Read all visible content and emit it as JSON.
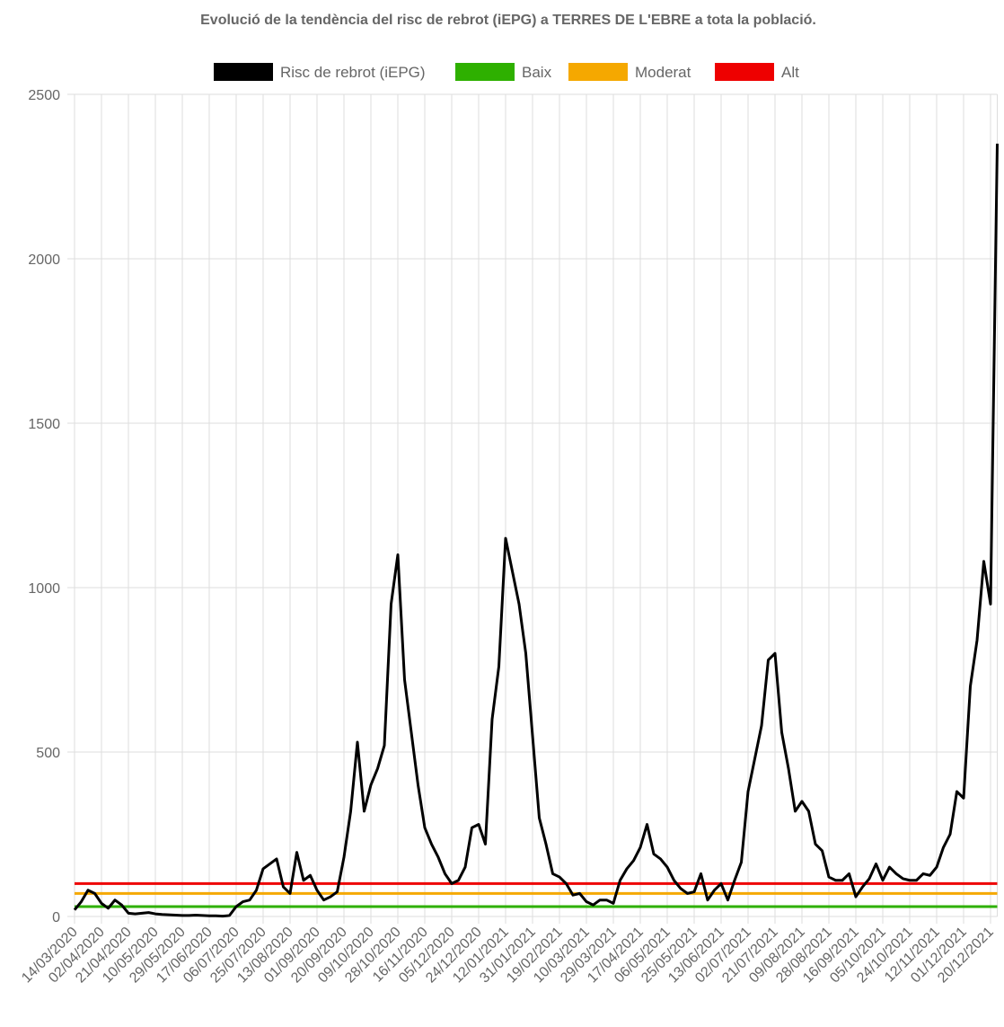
{
  "chart_data": {
    "type": "line",
    "title": "Evolució de la tendència del risc de rebrot (iEPG) a TERRES DE L'EBRE a tota la població.",
    "categories": [
      "14/03/2020",
      null,
      null,
      null,
      "02/04/2020",
      null,
      null,
      null,
      "21/04/2020",
      null,
      null,
      null,
      "10/05/2020",
      null,
      null,
      null,
      "29/05/2020",
      null,
      null,
      null,
      "17/06/2020",
      null,
      null,
      null,
      "06/07/2020",
      null,
      null,
      null,
      "25/07/2020",
      null,
      null,
      null,
      "13/08/2020",
      null,
      null,
      null,
      "01/09/2020",
      null,
      null,
      null,
      "20/09/2020",
      null,
      null,
      null,
      "09/10/2020",
      null,
      null,
      null,
      "28/10/2020",
      null,
      null,
      null,
      "16/11/2020",
      null,
      null,
      null,
      "05/12/2020",
      null,
      null,
      null,
      "24/12/2020",
      null,
      null,
      null,
      "12/01/2021",
      null,
      null,
      null,
      "31/01/2021",
      null,
      null,
      null,
      "19/02/2021",
      null,
      null,
      null,
      "10/03/2021",
      null,
      null,
      null,
      "29/03/2021",
      null,
      null,
      null,
      "17/04/2021",
      null,
      null,
      null,
      "06/05/2021",
      null,
      null,
      null,
      "25/05/2021",
      null,
      null,
      null,
      "13/06/2021",
      null,
      null,
      null,
      "02/07/2021",
      null,
      null,
      null,
      "21/07/2021",
      null,
      null,
      null,
      "09/08/2021",
      null,
      null,
      null,
      "28/08/2021",
      null,
      null,
      null,
      "16/09/2021",
      null,
      null,
      null,
      "05/10/2021",
      null,
      null,
      null,
      "24/10/2021",
      null,
      null,
      null,
      "12/11/2021",
      null,
      null,
      null,
      "01/12/2021",
      null,
      null,
      null,
      "20/12/2021",
      null
    ],
    "series": [
      {
        "name": "Risc de rebrot (iEPG)",
        "color": "#000000",
        "values": [
          20,
          45,
          80,
          70,
          40,
          25,
          50,
          35,
          10,
          8,
          10,
          12,
          8,
          6,
          5,
          4,
          3,
          3,
          4,
          3,
          2,
          2,
          1,
          3,
          30,
          45,
          50,
          80,
          145,
          160,
          175,
          90,
          70,
          195,
          110,
          125,
          80,
          50,
          60,
          75,
          180,
          320,
          530,
          320,
          400,
          450,
          520,
          950,
          1100,
          720,
          560,
          400,
          270,
          220,
          180,
          130,
          100,
          110,
          150,
          270,
          280,
          220,
          600,
          760,
          1150,
          1050,
          950,
          800,
          550,
          300,
          220,
          130,
          120,
          100,
          65,
          70,
          45,
          35,
          50,
          50,
          40,
          110,
          145,
          170,
          210,
          280,
          190,
          175,
          150,
          110,
          85,
          70,
          75,
          130,
          50,
          80,
          100,
          50,
          110,
          165,
          380,
          480,
          580,
          780,
          800,
          560,
          450,
          320,
          350,
          320,
          220,
          200,
          120,
          110,
          110,
          130,
          60,
          90,
          115,
          160,
          110,
          150,
          130,
          115,
          110,
          110,
          130,
          125,
          150,
          210,
          250,
          380,
          360,
          700,
          840,
          1080,
          950,
          2350
        ]
      }
    ],
    "thresholds": [
      {
        "name": "Baix",
        "color": "#2eb000",
        "value": 30
      },
      {
        "name": "Moderat",
        "color": "#f5a800",
        "value": 70
      },
      {
        "name": "Alt",
        "color": "#ee0000",
        "value": 100
      }
    ],
    "ylim": [
      0,
      2500
    ],
    "yticks": [
      0,
      500,
      1000,
      1500,
      2000,
      2500
    ],
    "grid": true
  }
}
